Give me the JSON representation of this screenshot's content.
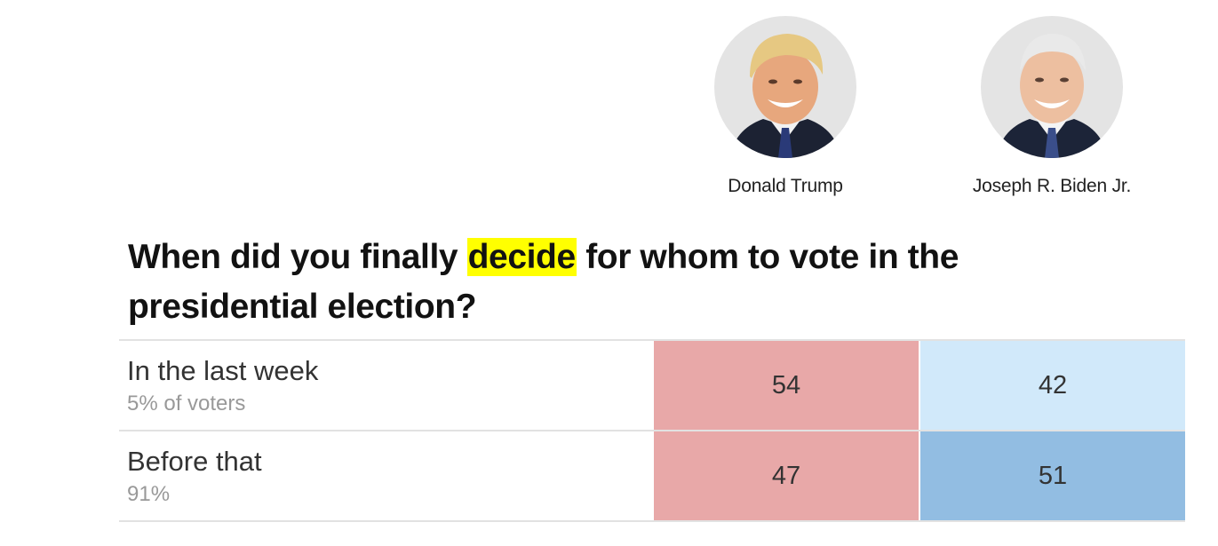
{
  "candidates": [
    {
      "name": "Donald Trump",
      "icon": "portrait-photo-icon",
      "color": "#e8a8a8"
    },
    {
      "name": "Joseph R. Biden Jr.",
      "icon": "portrait-photo-icon",
      "color": "#92bde2"
    }
  ],
  "question": {
    "before": "When did you finally ",
    "highlight": "decide",
    "after": " for whom to vote in the presidential election?",
    "highlight_color": "#ffff00"
  },
  "chart_data": {
    "type": "table",
    "title": "When did you finally decide for whom to vote in the presidential election?",
    "columns": [
      "Donald Trump",
      "Joseph R. Biden Jr."
    ],
    "rows": [
      {
        "label": "In the last week",
        "sub": "5% of voters",
        "values": [
          54,
          42
        ]
      },
      {
        "label": "Before that",
        "sub": "91%",
        "values": [
          47,
          51
        ]
      }
    ],
    "cell_colors": [
      [
        "#e8a8a8",
        "#d1e9fa"
      ],
      [
        "#e8a8a8",
        "#92bde2"
      ]
    ]
  }
}
